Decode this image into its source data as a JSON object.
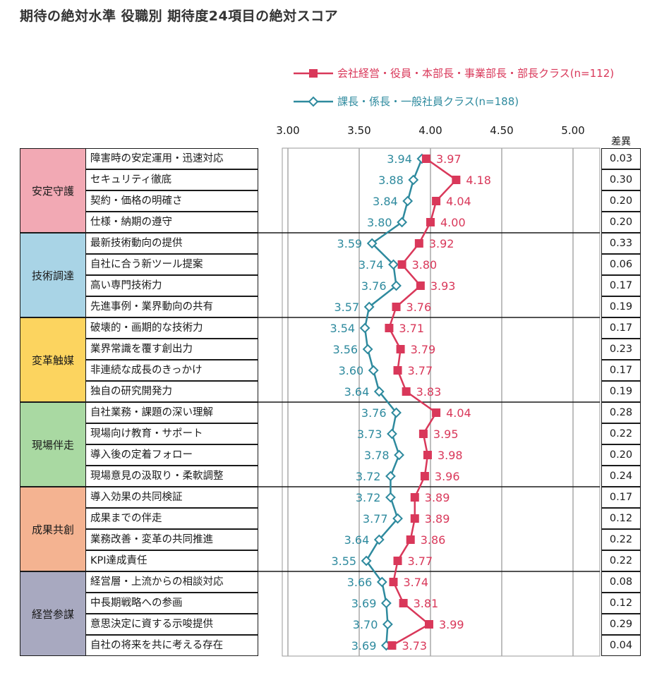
{
  "title": "期待の絶対水準 役職別 期待度24項目の絶対スコア",
  "legend": {
    "mgmt": "会社経営・役員・本部長・事業部長・部長クラス(n=112)",
    "staff": "課長・係長・一般社員クラス(n=188)"
  },
  "diff_header": "差異",
  "colors": {
    "mgmt": "#d9385a",
    "staff": "#2e8a9e"
  },
  "categories": [
    {
      "label": "安定守護",
      "color": "#f2a9b4",
      "rows": 4
    },
    {
      "label": "技術調達",
      "color": "#a9d4e6",
      "rows": 4
    },
    {
      "label": "変革触媒",
      "color": "#fcd45f",
      "rows": 4
    },
    {
      "label": "現場伴走",
      "color": "#a9d9a2",
      "rows": 4
    },
    {
      "label": "成果共創",
      "color": "#f4b391",
      "rows": 4
    },
    {
      "label": "経営参謀",
      "color": "#a8a9c0",
      "rows": 4
    }
  ],
  "chart_data": {
    "type": "line",
    "title": "期待の絶対水準 役職別 期待度24項目の絶対スコア",
    "orientation": "horizontal",
    "xlim": [
      3.0,
      5.0
    ],
    "x_ticks": [
      "3.00",
      "3.50",
      "4.00",
      "4.50",
      "5.00"
    ],
    "grid": true,
    "legend_position": "top-right",
    "categories": [
      "障害時の安定運用・迅速対応",
      "セキュリティ徹底",
      "契約・価格の明確さ",
      "仕様・納期の遵守",
      "最新技術動向の提供",
      "自社に合う新ツール提案",
      "高い専門技術力",
      "先進事例・業界動向の共有",
      "破壊的・画期的な技術力",
      "業界常識を覆す創出力",
      "非連続な成長のきっかけ",
      "独自の研究開発力",
      "自社業務・課題の深い理解",
      "現場向け教育・サポート",
      "導入後の定着フォロー",
      "現場意見の汲取り・柔軟調整",
      "導入効果の共同検証",
      "成果までの伴走",
      "業務改善・変革の共同推進",
      "KPI達成責任",
      "経営層・上流からの相談対応",
      "中長期戦略への参画",
      "意思決定に資する示唆提供",
      "自社の将来を共に考える存在"
    ],
    "series": [
      {
        "name": "会社経営・役員・本部長・事業部長・部長クラス(n=112)",
        "values": [
          3.97,
          4.18,
          4.04,
          4.0,
          3.92,
          3.8,
          3.93,
          3.76,
          3.71,
          3.79,
          3.77,
          3.83,
          4.04,
          3.95,
          3.98,
          3.96,
          3.89,
          3.89,
          3.86,
          3.77,
          3.74,
          3.81,
          3.99,
          3.73
        ],
        "labels": [
          "3.97",
          "4.18",
          "4.04",
          "4.00",
          "3.92",
          "3.80",
          "3.93",
          "3.76",
          "3.71",
          "3.79",
          "3.77",
          "3.83",
          "4.04",
          "3.95",
          "3.98",
          "3.96",
          "3.89",
          "3.89",
          "3.86",
          "3.77",
          "3.74",
          "3.81",
          "3.99",
          "3.73"
        ]
      },
      {
        "name": "課長・係長・一般社員クラス(n=188)",
        "values": [
          3.94,
          3.88,
          3.84,
          3.8,
          3.59,
          3.74,
          3.76,
          3.57,
          3.54,
          3.56,
          3.6,
          3.64,
          3.76,
          3.73,
          3.78,
          3.72,
          3.72,
          3.77,
          3.64,
          3.55,
          3.66,
          3.69,
          3.7,
          3.69
        ],
        "labels": [
          "3.94",
          "3.88",
          "3.84",
          "3.80",
          "3.59",
          "3.74",
          "3.76",
          "3.57",
          "3.54",
          "3.56",
          "3.60",
          "3.64",
          "3.76",
          "3.73",
          "3.78",
          "3.72",
          "3.72",
          "3.77",
          "3.64",
          "3.55",
          "3.66",
          "3.69",
          "3.70",
          "3.69"
        ]
      }
    ],
    "differences": [
      "0.03",
      "0.30",
      "0.20",
      "0.20",
      "0.33",
      "0.06",
      "0.17",
      "0.19",
      "0.17",
      "0.23",
      "0.17",
      "0.19",
      "0.28",
      "0.22",
      "0.20",
      "0.24",
      "0.17",
      "0.12",
      "0.22",
      "0.22",
      "0.08",
      "0.12",
      "0.29",
      "0.04"
    ]
  }
}
